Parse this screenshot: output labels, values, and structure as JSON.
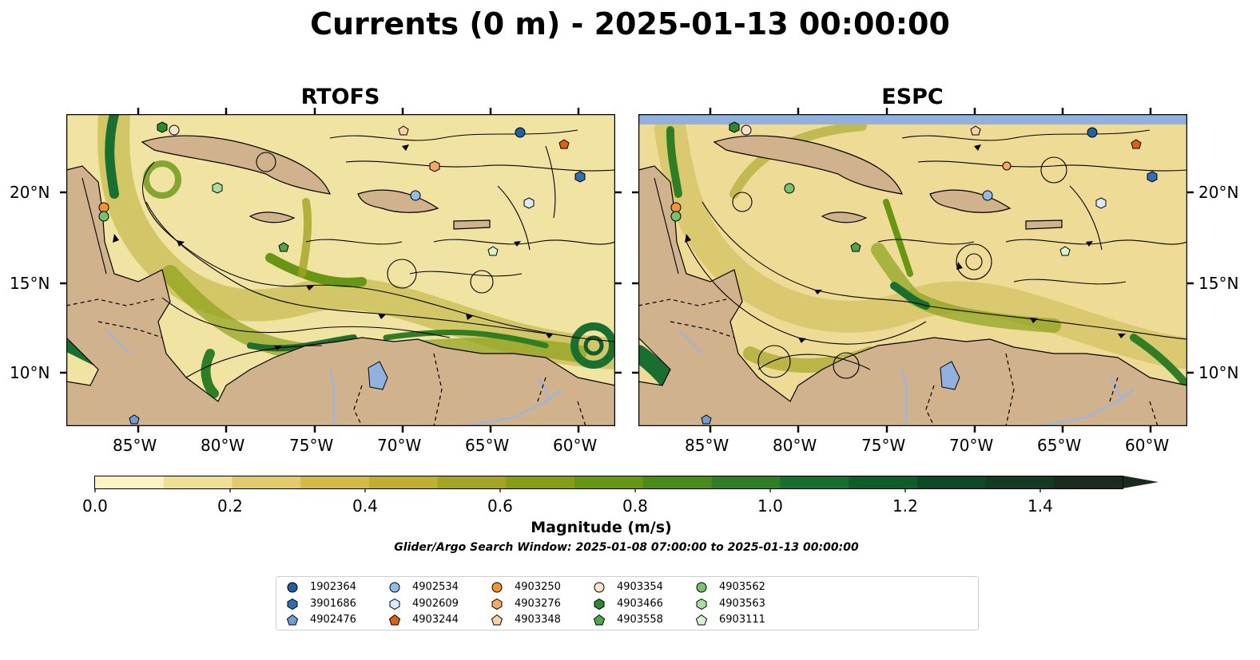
{
  "title": "Currents (0 m) - 2025-01-13 00:00:00",
  "panels": [
    {
      "name": "RTOFS"
    },
    {
      "name": "ESPC"
    }
  ],
  "lon_ticks": [
    "85°W",
    "80°W",
    "75°W",
    "70°W",
    "65°W",
    "60°W"
  ],
  "lat_ticks": [
    "20°N",
    "15°N",
    "10°N"
  ],
  "colorbar": {
    "label": "Magnitude (m/s)",
    "ticks": [
      "0.0",
      "0.2",
      "0.4",
      "0.6",
      "0.8",
      "1.0",
      "1.2",
      "1.4"
    ],
    "range": [
      0.0,
      1.5
    ],
    "extend": "max",
    "colors": [
      "#fbf4c2",
      "#efdf92",
      "#e2cb6a",
      "#d4bb48",
      "#bfb030",
      "#a4a422",
      "#859e14",
      "#679612",
      "#4a8c1a",
      "#2e7e24",
      "#17702f",
      "#0e5e2c",
      "#0c4a26",
      "#123b22",
      "#1a2b1c"
    ]
  },
  "search_window": "Glider/Argo Search Window: 2025-01-08 07:00:00 to 2025-01-13 00:00:00",
  "colors": {
    "land": "#d0b28c",
    "water_body": "#90b2e0",
    "river": "#9fb6d8",
    "streamline": "#000000"
  },
  "legend": [
    {
      "id": "1902364",
      "marker": "circle",
      "color": "#1f5fa8"
    },
    {
      "id": "3901686",
      "marker": "hexagon",
      "color": "#2f6fb4"
    },
    {
      "id": "4902476",
      "marker": "pentagon",
      "color": "#6d9fd6"
    },
    {
      "id": "4902534",
      "marker": "circle",
      "color": "#8fbde8"
    },
    {
      "id": "4902609",
      "marker": "hexagon",
      "color": "#d6ebfb"
    },
    {
      "id": "4903244",
      "marker": "pentagon",
      "color": "#e1600f"
    },
    {
      "id": "4903250",
      "marker": "circle",
      "color": "#f39433"
    },
    {
      "id": "4903276",
      "marker": "hexagon",
      "color": "#f5a765"
    },
    {
      "id": "4903348",
      "marker": "pentagon",
      "color": "#fbd1a4"
    },
    {
      "id": "4903354",
      "marker": "circle",
      "color": "#fde1cc"
    },
    {
      "id": "4903466",
      "marker": "hexagon",
      "color": "#2a8a2a"
    },
    {
      "id": "4903558",
      "marker": "pentagon",
      "color": "#49a84a"
    },
    {
      "id": "4903562",
      "marker": "circle",
      "color": "#72c56d"
    },
    {
      "id": "4903563",
      "marker": "hexagon",
      "color": "#a6dfa0"
    },
    {
      "id": "6903111",
      "marker": "pentagon",
      "color": "#d8f3cf"
    }
  ]
}
